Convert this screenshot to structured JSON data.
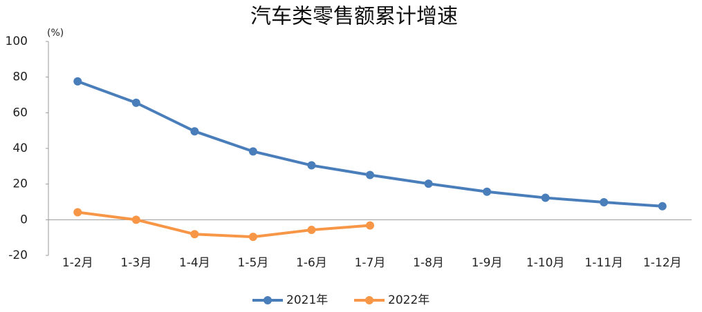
{
  "chart_data": {
    "type": "line",
    "title": "汽车类零售额累计增速",
    "y_unit_label": "(%)",
    "categories": [
      "1-2月",
      "1-3月",
      "1-4月",
      "1-5月",
      "1-6月",
      "1-7月",
      "1-8月",
      "1-9月",
      "1-10月",
      "1-11月",
      "1-12月"
    ],
    "series": [
      {
        "name": "2021年",
        "color": "#4a7ebb",
        "values": [
          77.6,
          65.6,
          49.6,
          38.3,
          30.5,
          25.1,
          20.2,
          15.7,
          12.3,
          9.8,
          7.6
        ]
      },
      {
        "name": "2022年",
        "color": "#f79646",
        "values": [
          4.2,
          0,
          -8.1,
          -9.6,
          -5.7,
          -3.2,
          null,
          null,
          null,
          null,
          null
        ]
      }
    ],
    "ylim": [
      -20,
      100
    ],
    "yticks": [
      -20,
      0,
      20,
      40,
      60,
      80,
      100
    ],
    "negative_tick_color": "#ff0000",
    "legend": "bottom"
  }
}
